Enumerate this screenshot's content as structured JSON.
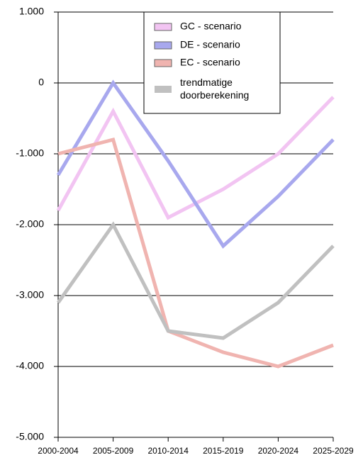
{
  "chart_data": {
    "type": "line",
    "categories": [
      "2000-2004",
      "2005-2009",
      "2010-2014",
      "2015-2019",
      "2020-2024",
      "2025-2029"
    ],
    "series": [
      {
        "name": "GC - scenario",
        "color": "#f2c4f2",
        "values": [
          -1800,
          -400,
          -1900,
          -1500,
          -1000,
          -200
        ]
      },
      {
        "name": "DE - scenario",
        "color": "#a8a8ee",
        "values": [
          -1300,
          0,
          -1100,
          -2300,
          -1600,
          -800
        ]
      },
      {
        "name": "EC - scenario",
        "color": "#f0b4b0",
        "values": [
          -1000,
          -800,
          -3500,
          -3800,
          -4000,
          -3700
        ]
      },
      {
        "name": "trendmatige doorberekening",
        "color": "#c0c0c0",
        "values": [
          -3100,
          -2000,
          -3500,
          -3600,
          -3100,
          -2300
        ]
      }
    ],
    "ylim": [
      -5000,
      1000
    ],
    "yticks": [
      {
        "value": -5000,
        "label": "-5.000"
      },
      {
        "value": -4000,
        "label": "-4.000"
      },
      {
        "value": -3000,
        "label": "-3.000"
      },
      {
        "value": -2000,
        "label": "-2.000"
      },
      {
        "value": -1000,
        "label": "-1.000"
      },
      0,
      {
        "value": 1000,
        "label": "1.000"
      }
    ],
    "grid": true
  }
}
